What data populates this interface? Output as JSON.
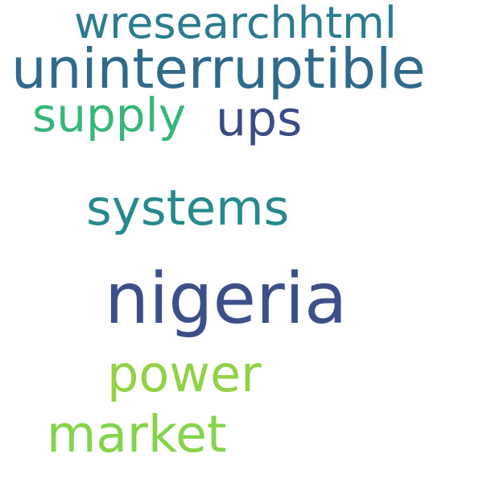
{
  "words": [
    {
      "id": "wresearchhtml",
      "text": "wresearchhtml",
      "color": "#2a7c8f"
    },
    {
      "id": "uninterruptible",
      "text": "uninterruptible",
      "color": "#2f6a8b"
    },
    {
      "id": "supply",
      "text": "supply",
      "color": "#36b779"
    },
    {
      "id": "ups",
      "text": "ups",
      "color": "#3b4b86"
    },
    {
      "id": "systems",
      "text": "systems",
      "color": "#26898d"
    },
    {
      "id": "nigeria",
      "text": "nigeria",
      "color": "#3c4f8a"
    },
    {
      "id": "power",
      "text": "power",
      "color": "#93d146"
    },
    {
      "id": "market",
      "text": "market",
      "color": "#84d44b"
    }
  ]
}
